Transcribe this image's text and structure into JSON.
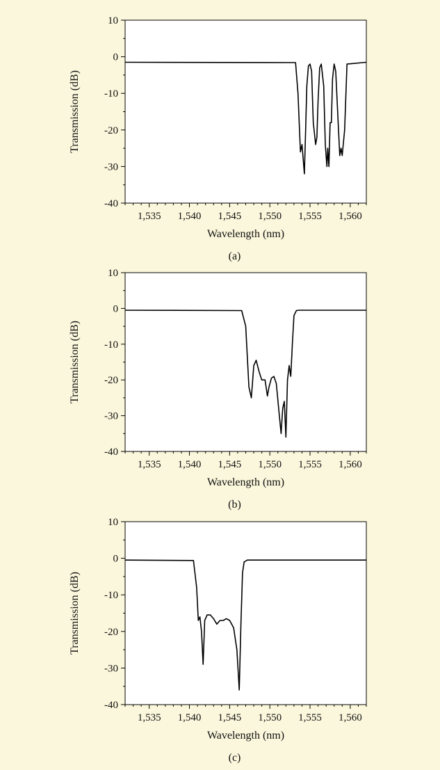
{
  "page": {
    "background": "#fbf7dc",
    "plot_background": "#ffffff",
    "line_color": "#000000"
  },
  "chart_data": [
    {
      "type": "line",
      "caption": "(a)",
      "xlabel": "Wavelength (nm)",
      "ylabel": "Transmission (dB)",
      "xlim": [
        1532,
        1562
      ],
      "ylim": [
        -40,
        10
      ],
      "x_ticks": [
        1535,
        1540,
        1545,
        1550,
        1555,
        1560
      ],
      "x_tick_labels": [
        "1,535",
        "1,540",
        "1,545",
        "1,550",
        "1,555",
        "1,560"
      ],
      "y_ticks": [
        10,
        0,
        -10,
        -20,
        -30,
        -40
      ],
      "y_tick_labels": [
        "10",
        "0",
        "-10",
        "-20",
        "-30",
        "-40"
      ],
      "series": [
        {
          "x": [
            1532,
            1553.2,
            1553.5,
            1553.8,
            1554.0,
            1554.15,
            1554.3,
            1554.45,
            1554.6,
            1554.8,
            1555.0,
            1555.2,
            1555.4,
            1555.7,
            1555.85,
            1556.0,
            1556.2,
            1556.4,
            1556.7,
            1556.9,
            1557.1,
            1557.2,
            1557.35,
            1557.5,
            1557.65,
            1557.8,
            1558.0,
            1558.2,
            1558.5,
            1558.7,
            1558.85,
            1559.0,
            1559.3,
            1559.6,
            1562
          ],
          "y": [
            -1.5,
            -1.6,
            -10,
            -26,
            -24,
            -28,
            -32,
            -20,
            -8,
            -2.5,
            -2,
            -4,
            -18,
            -24,
            -22,
            -12,
            -3,
            -2,
            -8,
            -24,
            -30,
            -25,
            -30,
            -18,
            -18,
            -6,
            -2,
            -4,
            -18,
            -27,
            -25,
            -27,
            -20,
            -2,
            -1.5
          ]
        }
      ]
    },
    {
      "type": "line",
      "caption": "(b)",
      "xlabel": "Wavelength (nm)",
      "ylabel": "Transmission (dB)",
      "xlim": [
        1532,
        1562
      ],
      "ylim": [
        -40,
        10
      ],
      "x_ticks": [
        1535,
        1540,
        1545,
        1550,
        1555,
        1560
      ],
      "x_tick_labels": [
        "1,535",
        "1,540",
        "1,545",
        "1,550",
        "1,555",
        "1,560"
      ],
      "y_ticks": [
        10,
        0,
        -10,
        -20,
        -30,
        -40
      ],
      "y_tick_labels": [
        "10",
        "0",
        "-10",
        "-20",
        "-30",
        "-40"
      ],
      "series": [
        {
          "x": [
            1532,
            1546.5,
            1547.0,
            1547.4,
            1547.7,
            1548.0,
            1548.3,
            1548.7,
            1549.0,
            1549.4,
            1549.7,
            1549.9,
            1550.2,
            1550.5,
            1550.8,
            1551.1,
            1551.4,
            1551.6,
            1551.8,
            1552.0,
            1552.2,
            1552.4,
            1552.6,
            1552.8,
            1553.0,
            1553.3,
            1553.6,
            1562
          ],
          "y": [
            -0.5,
            -0.6,
            -5,
            -22,
            -25,
            -16,
            -14.5,
            -18,
            -20,
            -20,
            -24.5,
            -22,
            -19.5,
            -19,
            -21,
            -28,
            -35,
            -28,
            -26,
            -36,
            -20,
            -16,
            -19,
            -10,
            -2,
            -0.6,
            -0.5,
            -0.5
          ]
        }
      ]
    },
    {
      "type": "line",
      "caption": "(c)",
      "xlabel": "Wavelength (nm)",
      "ylabel": "Transmission (dB)",
      "xlim": [
        1532,
        1562
      ],
      "ylim": [
        -40,
        10
      ],
      "x_ticks": [
        1535,
        1540,
        1545,
        1550,
        1555,
        1560
      ],
      "x_tick_labels": [
        "1,535",
        "1,540",
        "1,545",
        "1,550",
        "1,555",
        "1,560"
      ],
      "y_ticks": [
        10,
        0,
        -10,
        -20,
        -30,
        -40
      ],
      "y_tick_labels": [
        "10",
        "0",
        "-10",
        "-20",
        "-30",
        "-40"
      ],
      "series": [
        {
          "x": [
            1532,
            1540.5,
            1540.9,
            1541.1,
            1541.3,
            1541.5,
            1541.7,
            1541.9,
            1542.2,
            1542.6,
            1543.0,
            1543.4,
            1543.8,
            1544.2,
            1544.6,
            1545.0,
            1545.5,
            1545.9,
            1546.2,
            1546.4,
            1546.6,
            1546.8,
            1547.2,
            1562
          ],
          "y": [
            -0.5,
            -0.6,
            -8,
            -17,
            -16,
            -20,
            -29,
            -17,
            -15.5,
            -15.5,
            -16.5,
            -18,
            -17,
            -17,
            -16.5,
            -17,
            -19,
            -25,
            -36,
            -18,
            -4,
            -1,
            -0.5,
            -0.5
          ]
        }
      ]
    }
  ]
}
